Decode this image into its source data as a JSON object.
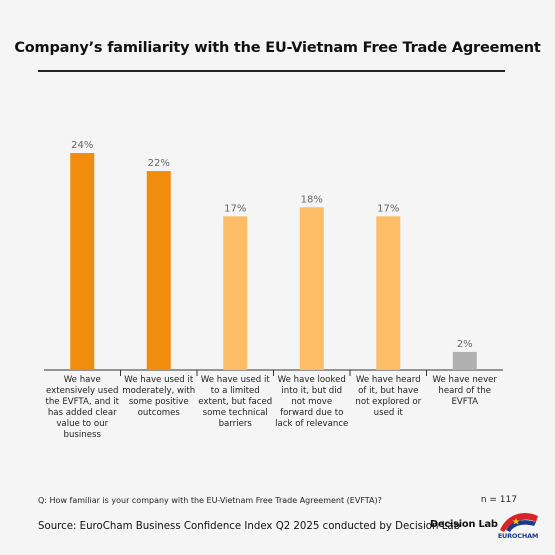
{
  "chart_data": {
    "type": "bar",
    "title": "Company’s familiarity with the EU-Vietnam Free Trade Agreement",
    "categories": [
      "We have extensively used the EVFTA, and it has added clear value to our business",
      "We have used it moderately, with some positive outcomes",
      "We have used it to a limited extent, but faced some technical barriers",
      "We have looked into it, but did not move forward due to lack of relevance",
      "We have heard of it, but have not explored or used it",
      "We have never heard of the EVFTA"
    ],
    "values": [
      24,
      22,
      17,
      18,
      17,
      2
    ],
    "value_labels": [
      "24%",
      "22%",
      "17%",
      "18%",
      "17%",
      "2%"
    ],
    "colors": [
      "#f28c0f",
      "#f28c0f",
      "#fdbd66",
      "#fdbd66",
      "#fdbd66",
      "#b0b0b0"
    ],
    "ylim": [
      0,
      24
    ],
    "grid": false,
    "xlabel": "",
    "ylabel": ""
  },
  "footer": {
    "question": "Q: How familiar is your company with the EU-Vietnam Free Trade Agreement (EVFTA)?",
    "n": "n = 117",
    "source": "Source: EuroCham Business Confidence Index Q2 2025 conducted by Decision Lab"
  },
  "brands": {
    "decision_lab": "Decision Lab",
    "eurocham": "EUROCHAM"
  }
}
